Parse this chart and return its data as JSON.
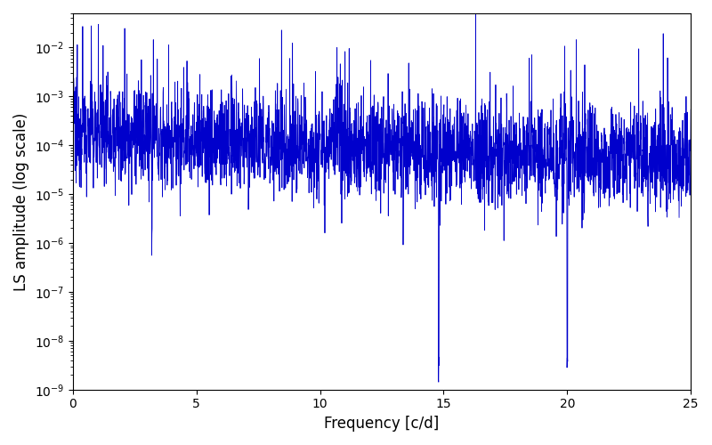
{
  "xlabel": "Frequency [c/d]",
  "ylabel": "LS amplitude (log scale)",
  "xlim": [
    0,
    25
  ],
  "ylim": [
    1e-09,
    0.05
  ],
  "line_color": "#0000cc",
  "line_width": 0.6,
  "figsize": [
    8.0,
    5.0
  ],
  "dpi": 100,
  "seed": 12345,
  "n_points": 3000,
  "freq_max": 25.0,
  "base_amplitude": 0.00015,
  "decay_rate": 0.045,
  "background_color": "#ffffff",
  "xticks": [
    0,
    5,
    10,
    15,
    20,
    25
  ]
}
